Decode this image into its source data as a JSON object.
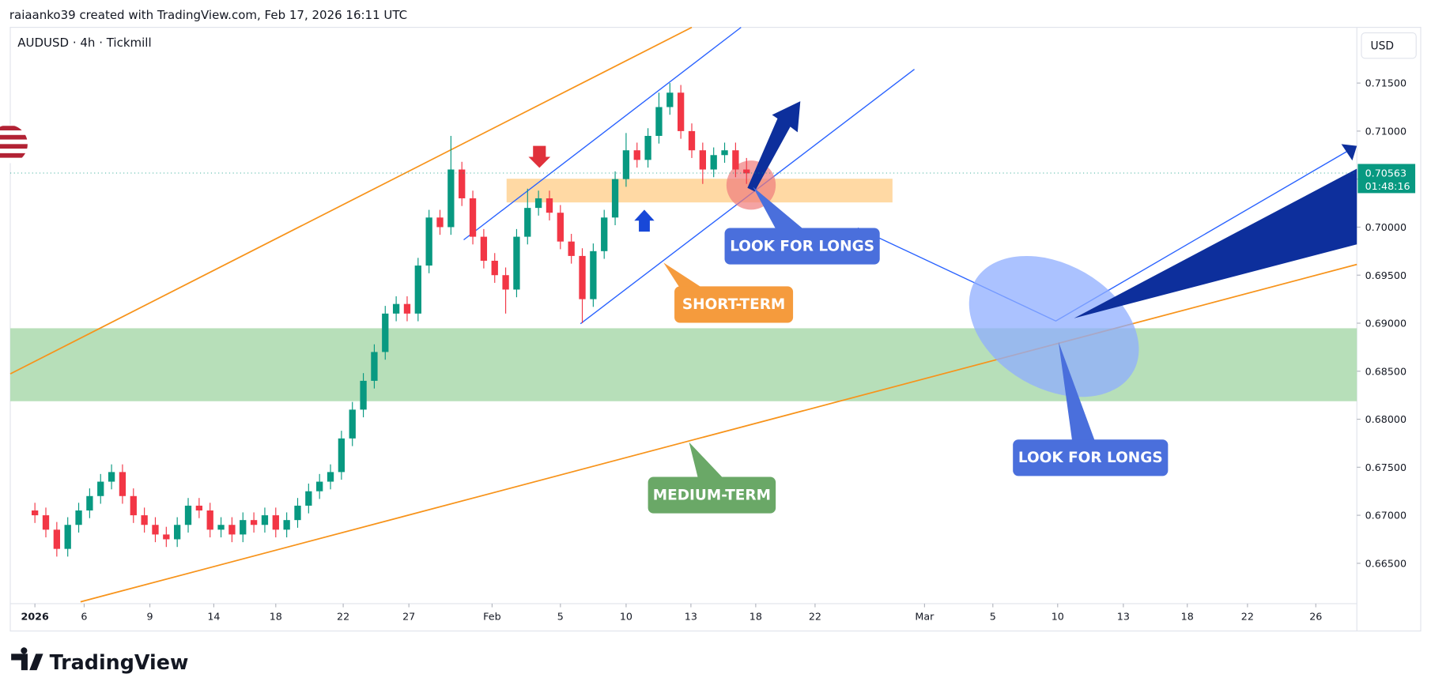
{
  "header": {
    "caption": "raiaanko39 created with TradingView.com, Feb 17, 2026 16:11 UTC"
  },
  "chart_data": {
    "type": "candlestick",
    "title": "AUDUSD · 4h · Tickmill",
    "currency": "USD",
    "up_color": "#089981",
    "down_color": "#f23645",
    "x": [
      0,
      0.5,
      1,
      1.5,
      2,
      2.5,
      3,
      3.5,
      4,
      4.5,
      5,
      5.5,
      6,
      6.5,
      7,
      7.5,
      8,
      8.5,
      9,
      9.5,
      10,
      10.5,
      11,
      11.5,
      12,
      12.5,
      13,
      13.5,
      14,
      14.5,
      15,
      15.5,
      16,
      16.5,
      17,
      17.5,
      18,
      18.5,
      19,
      19.5,
      20,
      20.5,
      21,
      21.5,
      22,
      22.5,
      23,
      23.5,
      24,
      24.5,
      25,
      25.5,
      26,
      26.5,
      27,
      27.5,
      28,
      28.5,
      29,
      29.5,
      30,
      30.5,
      31,
      31.5,
      32,
      32.5
    ],
    "open": [
      0.6705,
      0.67,
      0.6685,
      0.6665,
      0.669,
      0.6705,
      0.672,
      0.6735,
      0.6745,
      0.672,
      0.67,
      0.669,
      0.668,
      0.6675,
      0.669,
      0.671,
      0.6705,
      0.6685,
      0.669,
      0.668,
      0.6695,
      0.669,
      0.67,
      0.6685,
      0.6695,
      0.671,
      0.6725,
      0.6735,
      0.6745,
      0.678,
      0.681,
      0.684,
      0.687,
      0.691,
      0.692,
      0.691,
      0.696,
      0.701,
      0.7,
      0.706,
      0.703,
      0.699,
      0.6965,
      0.695,
      0.6935,
      0.699,
      0.702,
      0.703,
      0.7015,
      0.6985,
      0.697,
      0.6925,
      0.6975,
      0.701,
      0.705,
      0.708,
      0.707,
      0.7095,
      0.7125,
      0.714,
      0.71,
      0.708,
      0.706,
      0.7075,
      0.708,
      0.706
    ],
    "high": [
      0.6713,
      0.6708,
      0.6693,
      0.6698,
      0.6713,
      0.6728,
      0.6743,
      0.6753,
      0.6753,
      0.6728,
      0.6708,
      0.6698,
      0.6688,
      0.6698,
      0.6718,
      0.6718,
      0.6713,
      0.6698,
      0.6698,
      0.6703,
      0.6703,
      0.6708,
      0.6708,
      0.6703,
      0.6718,
      0.6733,
      0.6743,
      0.6753,
      0.6788,
      0.6818,
      0.6848,
      0.6878,
      0.6918,
      0.6928,
      0.6928,
      0.6968,
      0.7018,
      0.7018,
      0.7095,
      0.7068,
      0.7038,
      0.6998,
      0.6973,
      0.6958,
      0.6998,
      0.704,
      0.7038,
      0.7038,
      0.7023,
      0.6993,
      0.6978,
      0.6983,
      0.7018,
      0.7058,
      0.7098,
      0.7088,
      0.7103,
      0.714,
      0.715,
      0.7148,
      0.7108,
      0.7088,
      0.7083,
      0.7088,
      0.7088,
      0.7072
    ],
    "low": [
      0.6692,
      0.6677,
      0.6657,
      0.6657,
      0.6682,
      0.6697,
      0.6712,
      0.6727,
      0.6712,
      0.6692,
      0.6682,
      0.6672,
      0.6667,
      0.6667,
      0.6682,
      0.6697,
      0.6677,
      0.6677,
      0.6672,
      0.6672,
      0.6682,
      0.6682,
      0.6677,
      0.6677,
      0.6687,
      0.6702,
      0.6717,
      0.6727,
      0.6737,
      0.6772,
      0.6802,
      0.6832,
      0.6862,
      0.6902,
      0.6902,
      0.6902,
      0.6952,
      0.6992,
      0.6992,
      0.7022,
      0.6982,
      0.6957,
      0.6942,
      0.691,
      0.6927,
      0.6982,
      0.7012,
      0.7007,
      0.6977,
      0.6962,
      0.69,
      0.6917,
      0.6967,
      0.7002,
      0.7042,
      0.7062,
      0.7062,
      0.7087,
      0.7117,
      0.7092,
      0.7072,
      0.7045,
      0.7052,
      0.7067,
      0.7052,
      0.7045
    ],
    "close": [
      0.67,
      0.6685,
      0.6665,
      0.669,
      0.6705,
      0.672,
      0.6735,
      0.6745,
      0.672,
      0.67,
      0.669,
      0.668,
      0.6675,
      0.669,
      0.671,
      0.6705,
      0.6685,
      0.669,
      0.668,
      0.6695,
      0.669,
      0.67,
      0.6685,
      0.6695,
      0.671,
      0.6725,
      0.6735,
      0.6745,
      0.678,
      0.681,
      0.684,
      0.687,
      0.691,
      0.692,
      0.691,
      0.696,
      0.701,
      0.7,
      0.706,
      0.703,
      0.699,
      0.6965,
      0.695,
      0.6935,
      0.699,
      0.702,
      0.703,
      0.7015,
      0.6985,
      0.697,
      0.6925,
      0.6975,
      0.701,
      0.705,
      0.708,
      0.707,
      0.7095,
      0.7125,
      0.714,
      0.71,
      0.708,
      0.706,
      0.7075,
      0.708,
      0.706,
      0.7056
    ],
    "xlim": [
      -1.125,
      60.375
    ],
    "ylim": [
      0.6608,
      0.7208
    ],
    "xticks": [
      {
        "value": 0,
        "label": "2026"
      },
      {
        "value": 2.25,
        "label": "6"
      },
      {
        "value": 5.25,
        "label": "9"
      },
      {
        "value": 8.17,
        "label": "14"
      },
      {
        "value": 11,
        "label": "18"
      },
      {
        "value": 14.08,
        "label": "22"
      },
      {
        "value": 17.08,
        "label": "27"
      },
      {
        "value": 20.88,
        "label": "Feb"
      },
      {
        "value": 24,
        "label": "5"
      },
      {
        "value": 27,
        "label": "10"
      },
      {
        "value": 29.96,
        "label": "13"
      },
      {
        "value": 32.92,
        "label": "18"
      },
      {
        "value": 35.63,
        "label": "22"
      },
      {
        "value": 40.63,
        "label": "Mar"
      },
      {
        "value": 43.75,
        "label": "5"
      },
      {
        "value": 46.71,
        "label": "10"
      },
      {
        "value": 49.71,
        "label": "13"
      },
      {
        "value": 52.63,
        "label": "18"
      },
      {
        "value": 55.38,
        "label": "22"
      },
      {
        "value": 58.5,
        "label": "26"
      }
    ],
    "yticks": [
      {
        "value": 0.715,
        "label": "0.71500"
      },
      {
        "value": 0.71,
        "label": "0.71000"
      },
      {
        "value": 0.705,
        "label": "0.70500"
      },
      {
        "value": 0.7,
        "label": "0.70000"
      },
      {
        "value": 0.695,
        "label": "0.69500"
      },
      {
        "value": 0.69,
        "label": "0.69000"
      },
      {
        "value": 0.685,
        "label": "0.68500"
      },
      {
        "value": 0.68,
        "label": "0.68000"
      },
      {
        "value": 0.675,
        "label": "0.67500"
      },
      {
        "value": 0.67,
        "label": "0.67000"
      },
      {
        "value": 0.665,
        "label": "0.66500"
      }
    ],
    "last_price": 0.70563,
    "countdown": "01:48:16",
    "annotations": [
      "LOOK FOR LONGS",
      "SHORT-TERM",
      "MEDIUM-TERM",
      "LOOK FOR LONGS"
    ]
  },
  "footer": {
    "brand": "TradingView"
  }
}
